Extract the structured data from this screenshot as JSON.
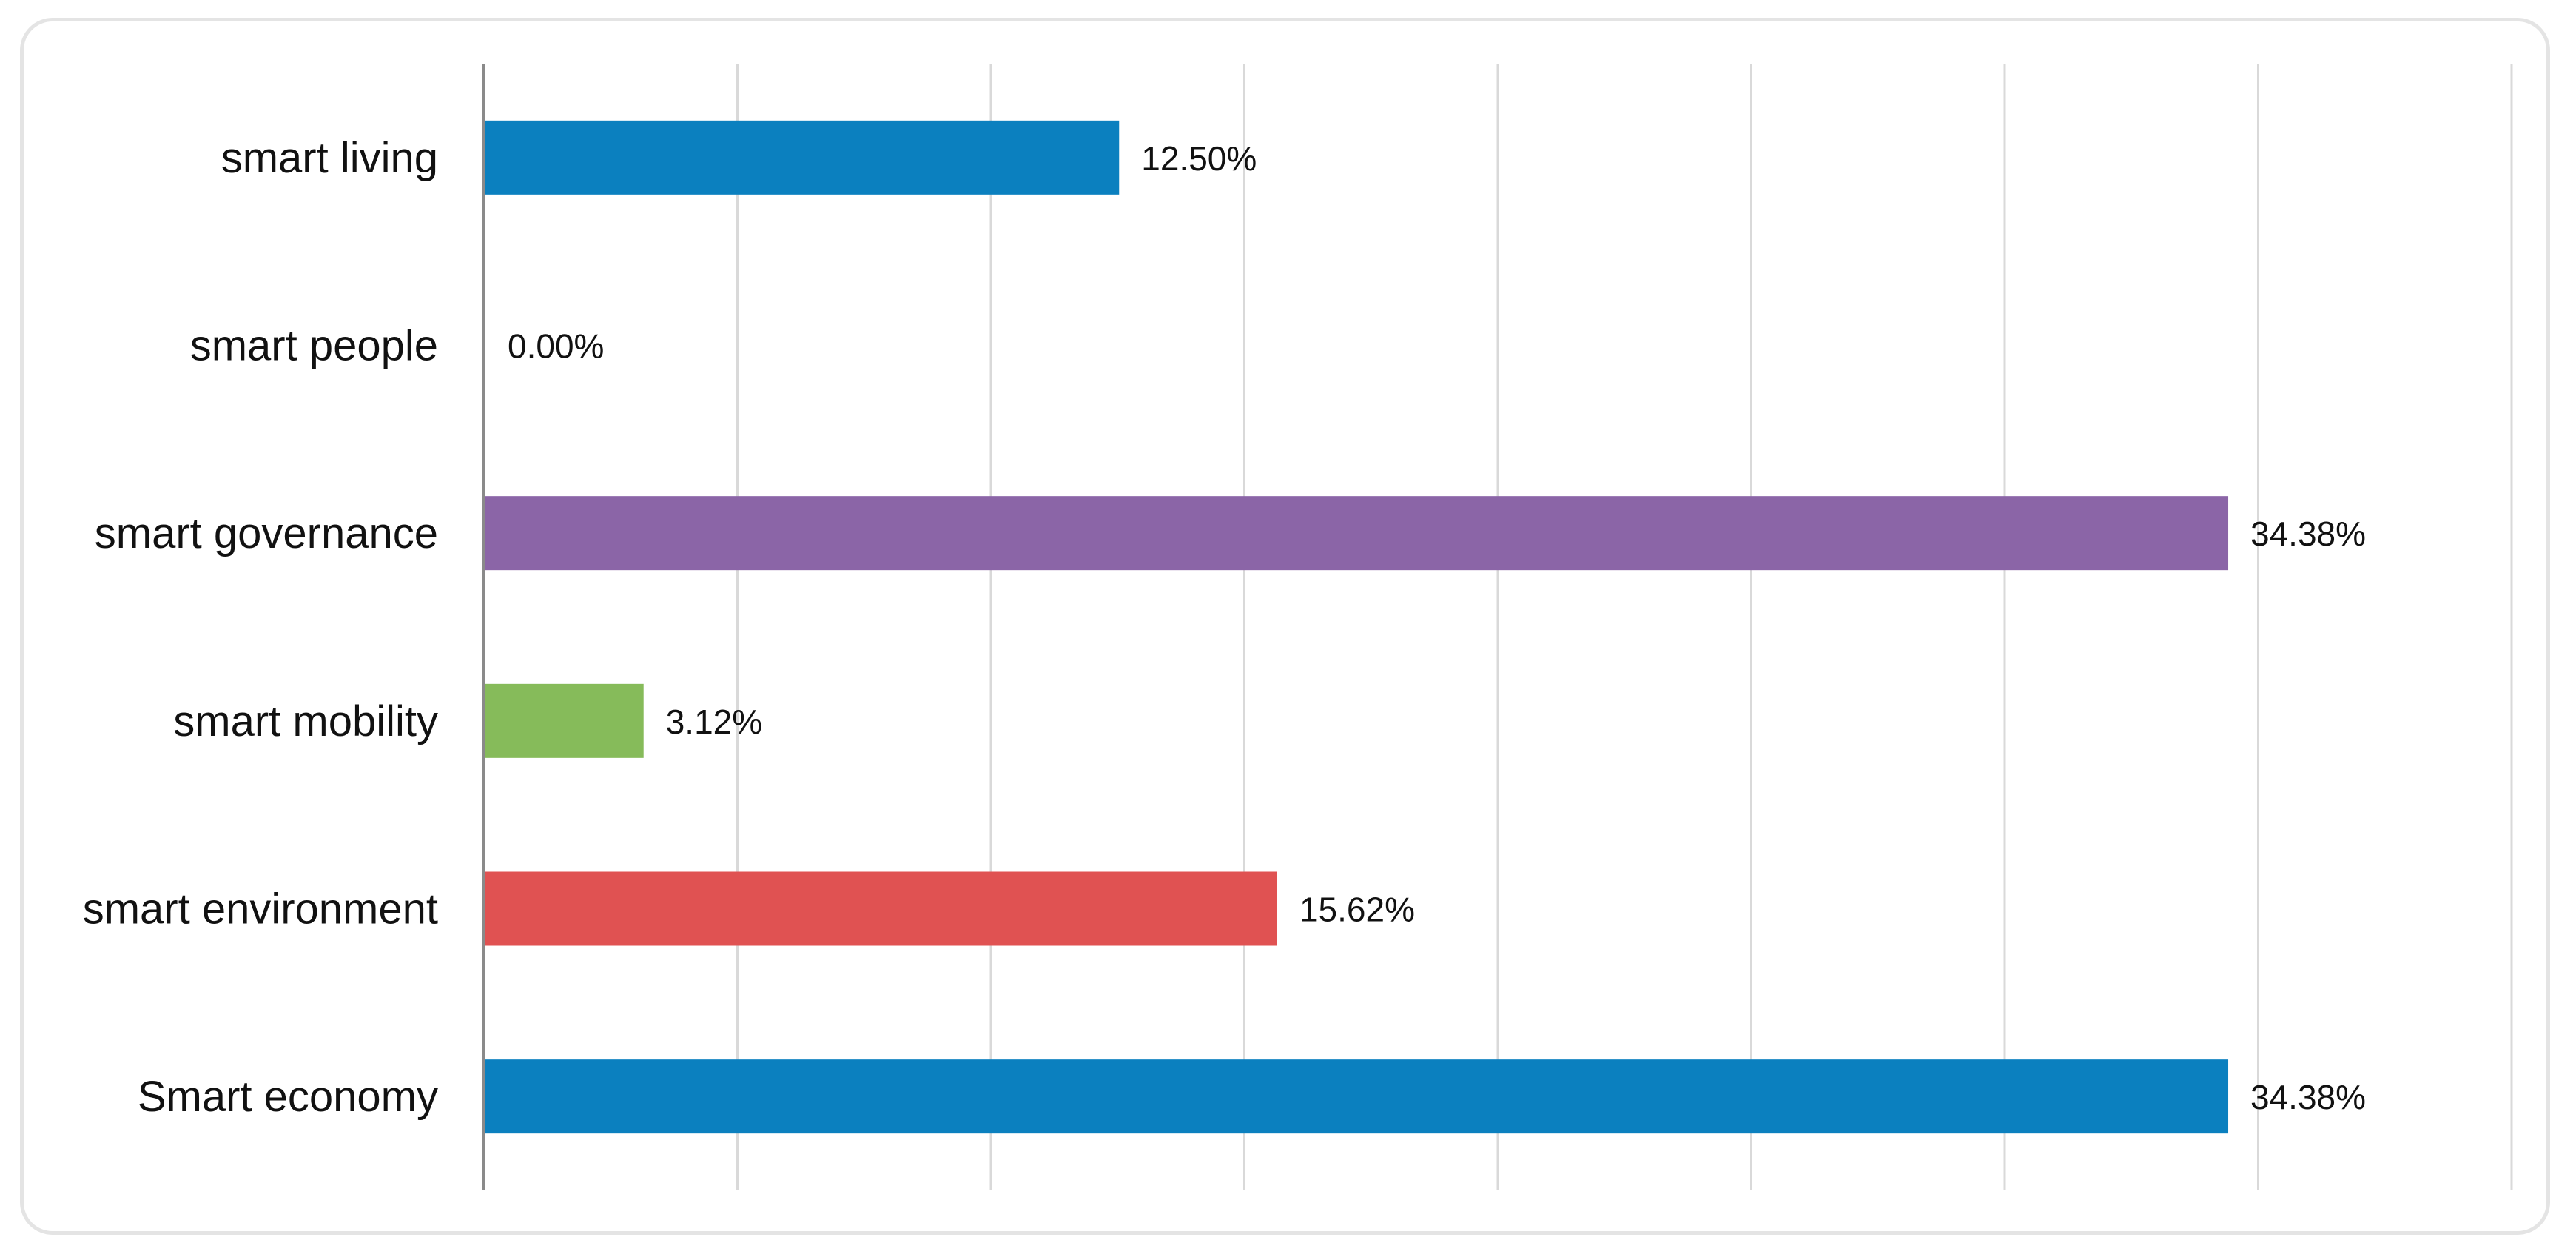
{
  "chart_data": {
    "type": "bar",
    "orientation": "horizontal",
    "title": "",
    "xlabel": "",
    "ylabel": "",
    "xlim": [
      0,
      40
    ],
    "grid": true,
    "legend": "none",
    "categories": [
      "smart living",
      "smart people",
      "smart governance",
      "smart mobility",
      "smart environment",
      "Smart economy"
    ],
    "values": [
      12.5,
      0.0,
      34.38,
      3.12,
      15.62,
      34.38
    ],
    "value_labels": [
      "12.50%",
      "0.00%",
      "34.38%",
      "3.12%",
      "15.62%",
      "34.38%"
    ],
    "colors": [
      "#0b80bf",
      "#0b80bf",
      "#8b65a7",
      "#86bb5a",
      "#e05252",
      "#0b80bf"
    ]
  }
}
